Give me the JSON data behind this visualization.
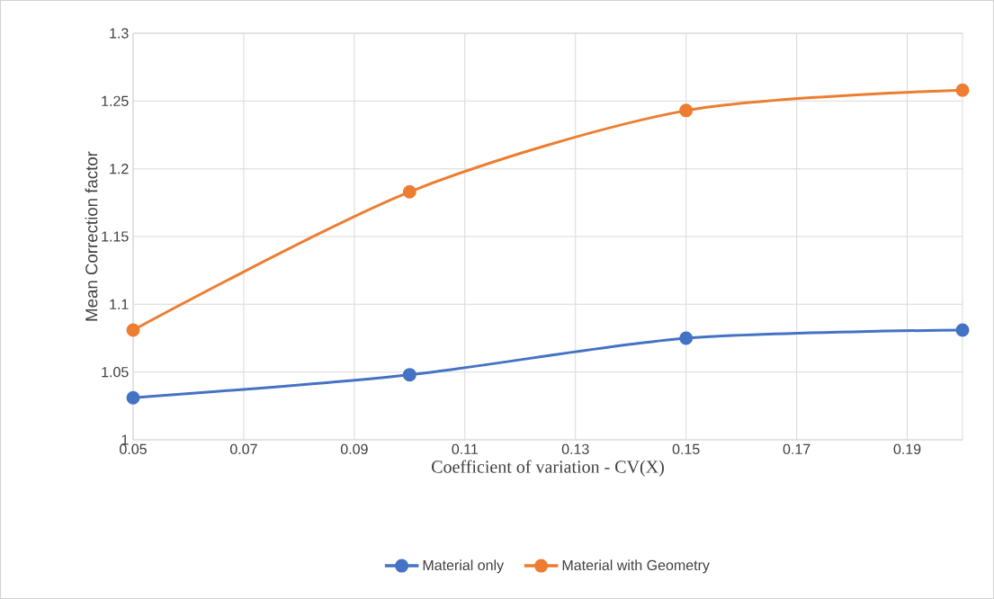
{
  "chart_data": {
    "type": "line",
    "xlabel": "Coefficient of variation - CV(X)",
    "ylabel": "Mean Correction factor",
    "x": [
      0.05,
      0.1,
      0.15,
      0.2
    ],
    "series": [
      {
        "name": "Material only",
        "color": "#4472c4",
        "values": [
          1.031,
          1.048,
          1.075,
          1.081
        ]
      },
      {
        "name": "Material with Geometry",
        "color": "#ed7d31",
        "values": [
          1.081,
          1.183,
          1.243,
          1.258
        ]
      }
    ],
    "xlim": [
      0.05,
      0.2
    ],
    "ylim": [
      1,
      1.3
    ],
    "xticks": [
      0.05,
      0.07,
      0.09,
      0.11,
      0.13,
      0.15,
      0.17,
      0.19
    ],
    "yticks": [
      1,
      1.05,
      1.1,
      1.15,
      1.2,
      1.25,
      1.3
    ],
    "grid": true,
    "legend": "bottom",
    "marker": "circle",
    "line_style": "solid"
  }
}
